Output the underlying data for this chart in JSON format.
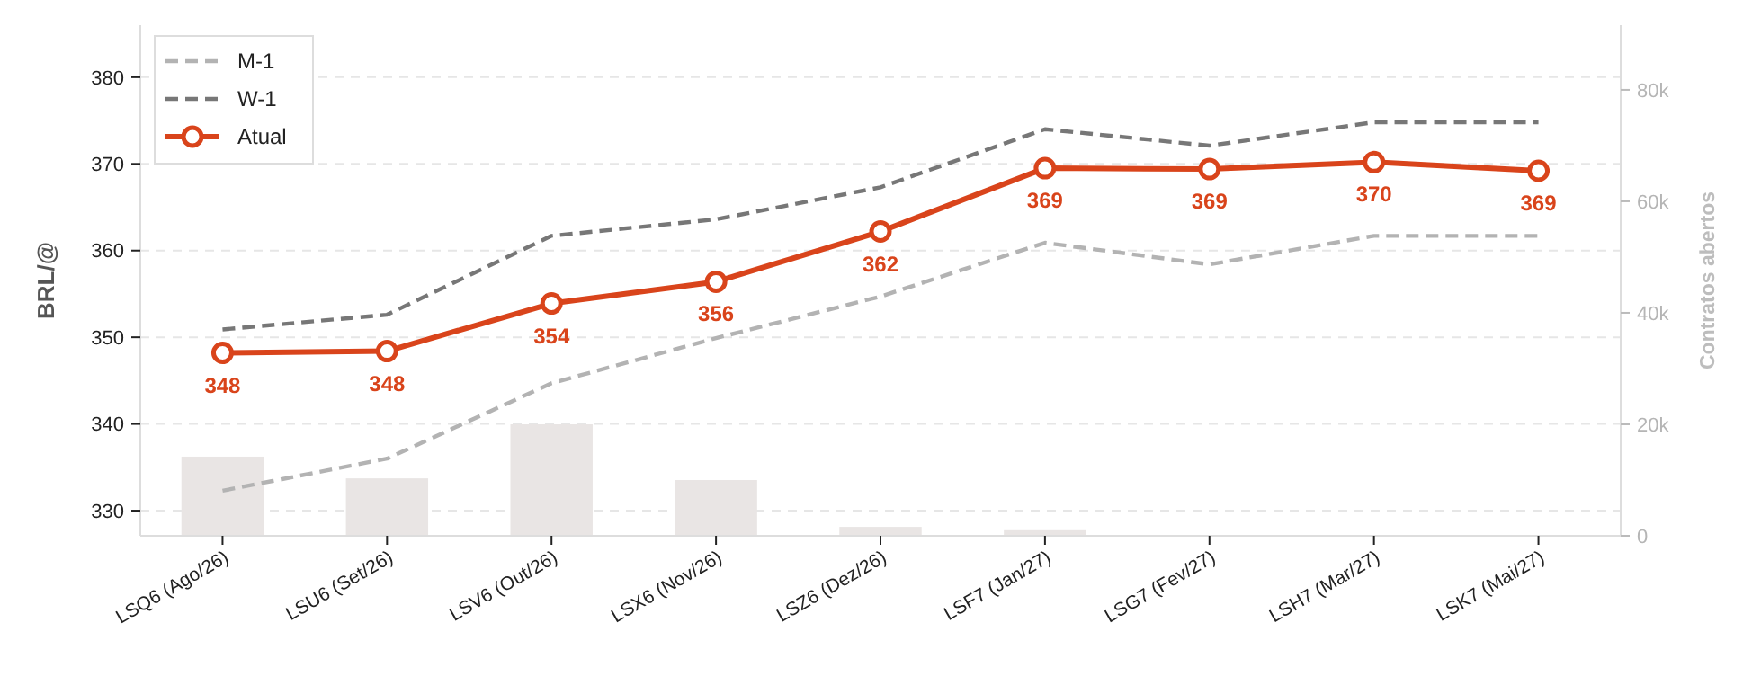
{
  "chart_data": {
    "type": "line",
    "ylabel": "BRL/@",
    "y2label": "Contratos abertos",
    "categories": [
      "LSQ6 (Ago/26)",
      "LSU6 (Set/26)",
      "LSV6 (Out/26)",
      "LSX6 (Nov/26)",
      "LSZ6 (Dez/26)",
      "LSF7 (Jan/27)",
      "LSG7 (Fev/27)",
      "LSH7 (Mar/27)",
      "LSK7 (Mai/27)"
    ],
    "series": [
      {
        "type": "bar",
        "axis": "y2",
        "color": "#e9e5e4",
        "values": [
          14200,
          10300,
          20000,
          10000,
          1600,
          1000,
          0,
          0,
          0
        ]
      },
      {
        "name": "M-1",
        "color": "#b3b3b3",
        "line_style": "dashed",
        "marker": "none",
        "values": [
          332.3,
          336.0,
          344.7,
          349.9,
          354.7,
          360.9,
          358.4,
          361.7,
          361.7
        ]
      },
      {
        "name": "W-1",
        "color": "#777777",
        "line_style": "dashed",
        "marker": "none",
        "values": [
          350.9,
          352.6,
          361.7,
          363.6,
          367.3,
          374.0,
          372.1,
          374.8,
          374.8
        ]
      },
      {
        "name": "Atual",
        "color": "#d9441b",
        "line_style": "solid",
        "marker": "circle",
        "values": [
          348.2,
          348.4,
          353.9,
          356.4,
          362.2,
          369.5,
          369.4,
          370.2,
          369.2
        ],
        "value_labels": [
          "348",
          "348",
          "354",
          "356",
          "362",
          "369",
          "369",
          "370",
          "369"
        ]
      }
    ],
    "ylim": [
      327.1,
      386
    ],
    "yticks": [
      330,
      340,
      350,
      360,
      370,
      380
    ],
    "y2lim": [
      0,
      91600
    ],
    "y2ticks": [
      {
        "value": 0,
        "label": "0"
      },
      {
        "value": 20000,
        "label": "20k"
      },
      {
        "value": 40000,
        "label": "40k"
      },
      {
        "value": 60000,
        "label": "60k"
      },
      {
        "value": 80000,
        "label": "80k"
      }
    ],
    "grid": "y",
    "legend": "top left"
  }
}
